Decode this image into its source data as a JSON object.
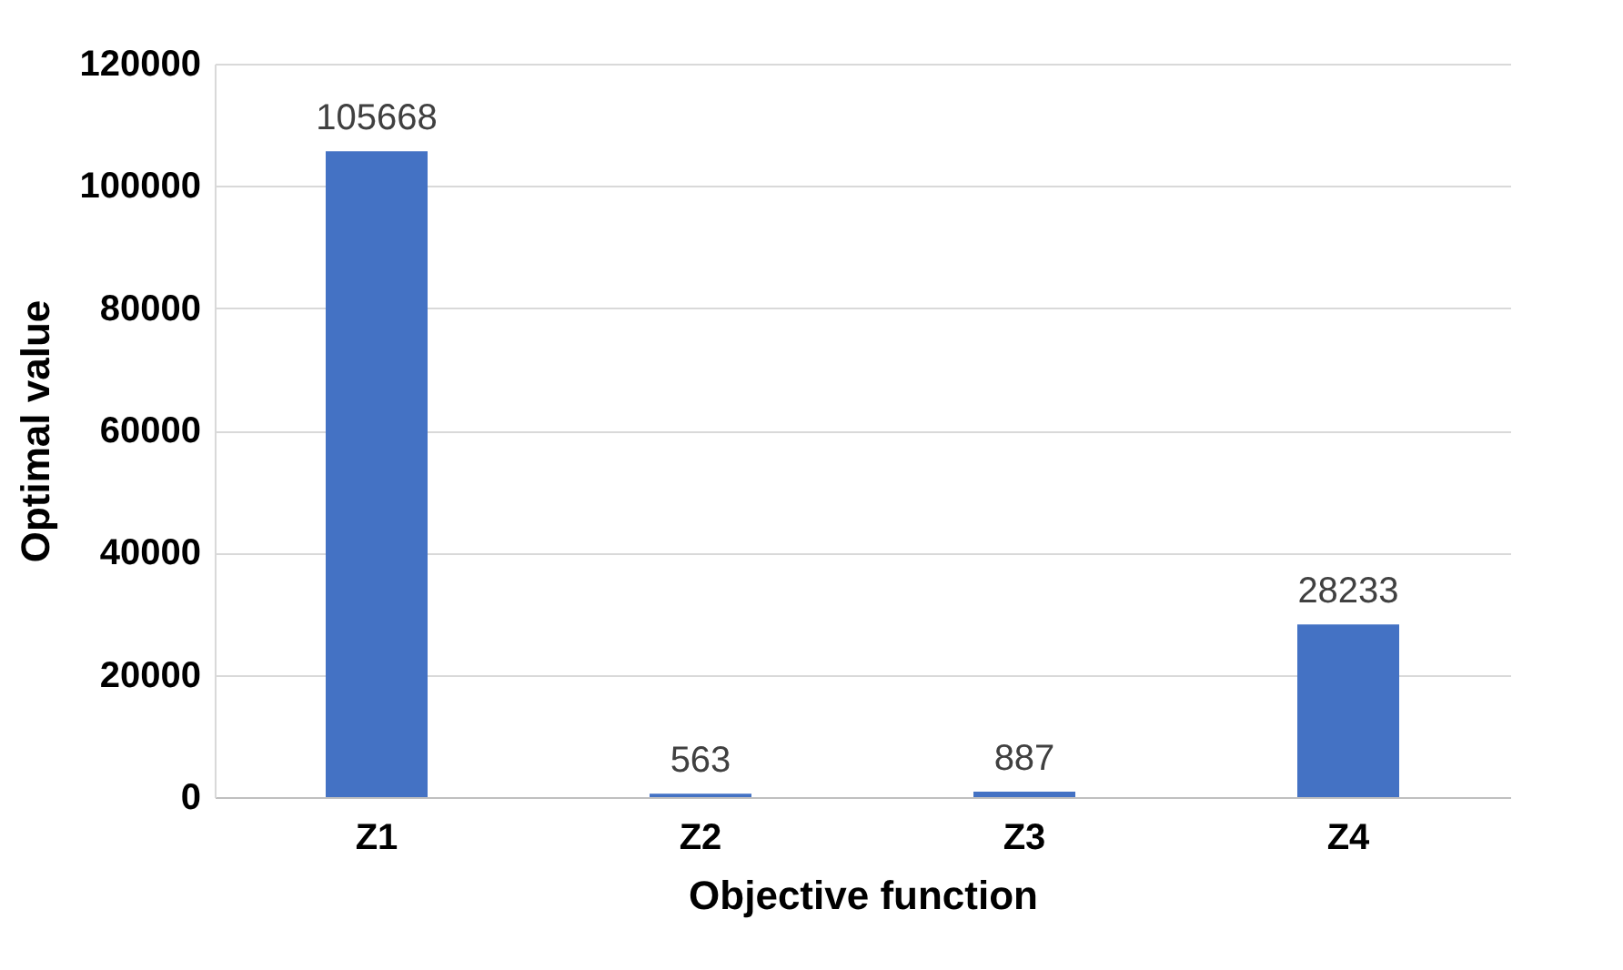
{
  "chart_data": {
    "type": "bar",
    "xlabel": "Objective function",
    "ylabel": "Optimal value",
    "categories": [
      "Z1",
      "Z2",
      "Z3",
      "Z4"
    ],
    "values": [
      105668,
      563,
      887,
      28233
    ],
    "color": "#4472c4",
    "ylim": [
      0,
      120000
    ],
    "yticks": [
      0,
      20000,
      40000,
      60000,
      80000,
      100000,
      120000
    ],
    "grid": "y",
    "data_labels": true
  }
}
